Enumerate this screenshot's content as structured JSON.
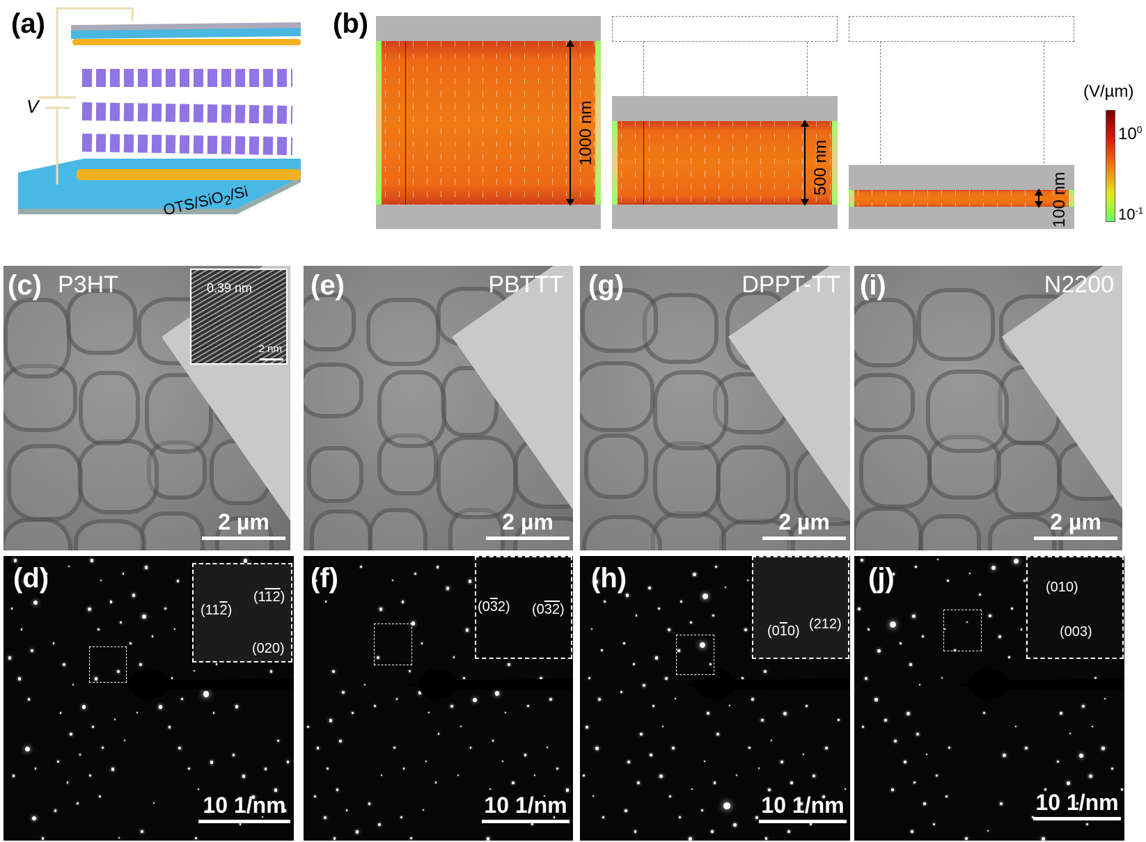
{
  "panels": {
    "a": {
      "label": "(a)",
      "voltage_label": "V",
      "substrate_prefix": "OTS/SiO",
      "substrate_sub": "2",
      "substrate_suffix": "/Si"
    },
    "b": {
      "label": "(b)",
      "thicknesses": [
        "1000 nm",
        "500 nm",
        "100 nm"
      ],
      "colorbar": {
        "unit": "(V/µm)",
        "max_base": "10",
        "max_exp": "0",
        "min_base": "10",
        "min_exp": "-1",
        "colors": [
          "#7a0000",
          "#d91a0a",
          "#f07a14",
          "#e6e61a",
          "#66ff66"
        ]
      }
    },
    "c": {
      "label": "(c)",
      "title": "P3HT",
      "scale": "2 µm",
      "inset_spacing": "0.39 nm",
      "inset_scale": "2 nm"
    },
    "e": {
      "label": "(e)",
      "title": "PBTTT",
      "scale": "2 µm"
    },
    "g": {
      "label": "(g)",
      "title": "DPPT-TT",
      "scale": "2 µm"
    },
    "i": {
      "label": "(i)",
      "title": "N2200",
      "scale": "2 µm"
    },
    "d": {
      "label": "(d)",
      "scale": "10 1/nm",
      "reflections": [
        [
          "(1",
          "1",
          "2",
          ")"
        ],
        [
          "(1",
          "1",
          "2",
          ")"
        ],
        "(020)"
      ]
    },
    "f": {
      "label": "(f)",
      "scale": "10 1/nm",
      "reflections": [
        [
          "(0",
          "3",
          "2)"
        ],
        [
          "(0",
          "3",
          "2",
          ")"
        ]
      ]
    },
    "h": {
      "label": "(h)",
      "scale": "10 1/nm",
      "reflections": [
        [
          "(0",
          "1",
          "0)"
        ],
        "(212)"
      ]
    },
    "j": {
      "label": "(j)",
      "scale": "10 1/nm",
      "reflections": [
        "(010)",
        "(003)"
      ]
    }
  }
}
